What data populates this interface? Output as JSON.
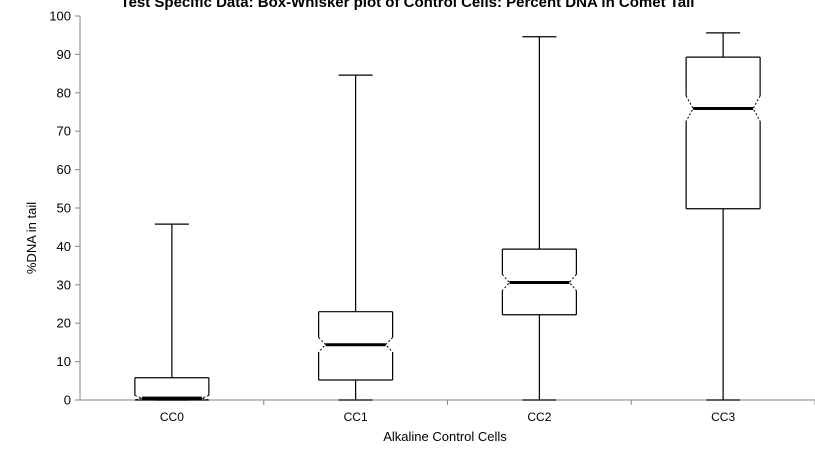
{
  "chart_data": {
    "type": "box",
    "title": "Test Specific Data: Box-Whisker plot of Control Cells: Percent DNA in Comet Tail",
    "xlabel": "Alkaline Control Cells",
    "ylabel": "%DNA in tail",
    "ylim": [
      0,
      100
    ],
    "yticks": [
      0,
      10,
      20,
      30,
      40,
      50,
      60,
      70,
      80,
      90,
      100
    ],
    "grid": false,
    "notched": true,
    "categories": [
      "CC0",
      "CC1",
      "CC2",
      "CC3"
    ],
    "boxes": [
      {
        "category": "CC0",
        "min": 0,
        "q1": 0,
        "median": 0.5,
        "q3": 5.8,
        "max": 45.8,
        "notch_low": 0,
        "notch_high": 1.2
      },
      {
        "category": "CC1",
        "min": 0,
        "q1": 5.2,
        "median": 14.4,
        "q3": 23.0,
        "max": 84.6,
        "notch_low": 12.5,
        "notch_high": 16.3
      },
      {
        "category": "CC2",
        "min": 0,
        "q1": 22.2,
        "median": 30.6,
        "q3": 39.3,
        "max": 94.6,
        "notch_low": 28.5,
        "notch_high": 32.7
      },
      {
        "category": "CC3",
        "min": 0,
        "q1": 49.8,
        "median": 75.9,
        "q3": 89.3,
        "max": 95.6,
        "notch_low": 72.6,
        "notch_high": 79.2
      }
    ],
    "colors": {
      "line": "#000000",
      "axis": "#868686",
      "text": "#000000"
    }
  }
}
